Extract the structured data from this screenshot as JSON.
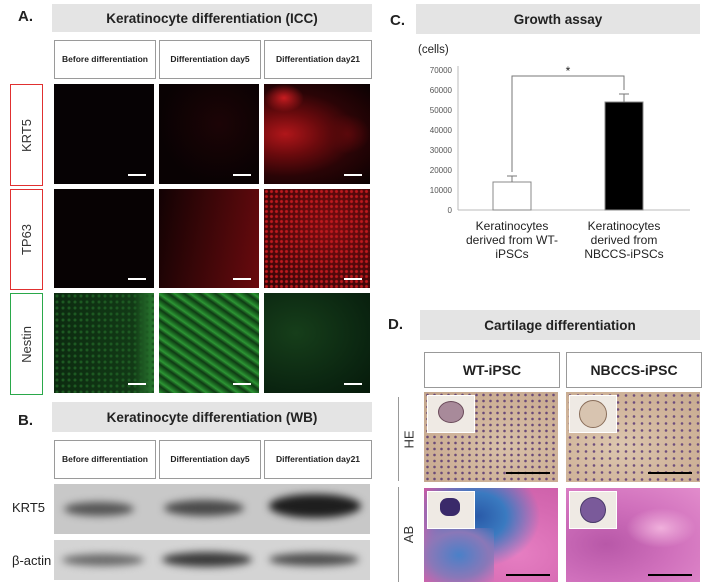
{
  "panelA": {
    "letter": "A.",
    "title": "Keratinocyte differentiation (ICC)",
    "columns": [
      "Before differentiation",
      "Differentiation day5",
      "Differentiation day21"
    ],
    "rows": [
      {
        "label": "KRT5",
        "color": "#e03030"
      },
      {
        "label": "TP63",
        "color": "#e03030"
      },
      {
        "label": "Nestin",
        "color": "#2aa84a"
      }
    ]
  },
  "panelB": {
    "letter": "B.",
    "title": "Keratinocyte differentiation (WB)",
    "columns": [
      "Before differentiation",
      "Differentiation day5",
      "Differentiation day21"
    ],
    "rows": [
      "KRT5",
      "β-actin"
    ]
  },
  "panelC": {
    "letter": "C.",
    "title": "Growth assay",
    "unit": "(cells)",
    "significance": "*"
  },
  "panelD": {
    "letter": "D.",
    "title": "Cartilage differentiation",
    "columns": [
      "WT-iPSC",
      "NBCCS-iPSC"
    ],
    "rows": [
      "HE",
      "AB"
    ]
  },
  "chart_data": {
    "type": "bar",
    "title": "Growth assay",
    "ylabel": "(cells)",
    "categories": [
      "Keratinocytes derived from WT-iPSCs",
      "Keratinocytes derived from NBCCS-iPSCs"
    ],
    "values": [
      14000,
      54000
    ],
    "errors": [
      3000,
      4000
    ],
    "colors": [
      "#ffffff",
      "#000000"
    ],
    "ylim": [
      0,
      70000
    ],
    "yticks": [
      0,
      10000,
      20000,
      30000,
      40000,
      50000,
      60000,
      70000
    ],
    "grid": false,
    "annotation": "*"
  }
}
